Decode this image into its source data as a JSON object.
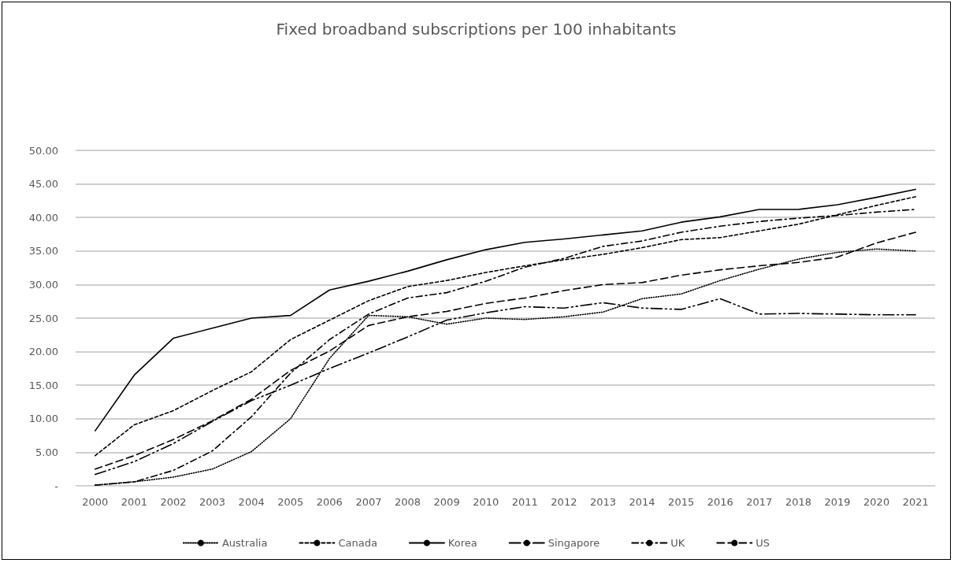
{
  "chart_data": {
    "type": "line",
    "title": "Fixed broadband subscriptions per 100 inhabitants",
    "categories": [
      "2000",
      "2001",
      "2002",
      "2003",
      "2004",
      "2005",
      "2006",
      "2007",
      "2008",
      "2009",
      "2010",
      "2011",
      "2012",
      "2013",
      "2014",
      "2015",
      "2016",
      "2017",
      "2018",
      "2019",
      "2020",
      "2021"
    ],
    "series": [
      {
        "name": "Australia",
        "color": "#000000",
        "line_style": "dotted",
        "values": [
          0.1,
          0.6,
          1.3,
          2.5,
          5.1,
          10,
          19,
          25.4,
          25.2,
          24.1,
          25,
          24.8,
          25.2,
          25.9,
          27.9,
          28.6,
          30.6,
          32.3,
          33.8,
          34.8,
          35.3,
          35
        ]
      },
      {
        "name": "Canada",
        "color": "#000000",
        "line_style": "dashed",
        "values": [
          4.5,
          9.1,
          11.2,
          14.2,
          17,
          21.8,
          24.7,
          27.6,
          29.7,
          30.6,
          31.8,
          32.8,
          33.7,
          34.5,
          35.5,
          36.7,
          37,
          38,
          39,
          40.4,
          41.8,
          43.1
        ]
      },
      {
        "name": "Korea",
        "color": "#000000",
        "line_style": "solid",
        "values": [
          8.2,
          16.5,
          22,
          23.5,
          25,
          25.4,
          29.2,
          30.5,
          32,
          33.7,
          35.2,
          36.3,
          36.8,
          37.4,
          38,
          39.3,
          40.1,
          41.2,
          41.2,
          41.9,
          43,
          44.2
        ]
      },
      {
        "name": "Singapore",
        "color": "#000000",
        "line_style": "dashdotdot",
        "values": [
          1.7,
          3.6,
          6.3,
          9.6,
          12.7,
          15,
          17.5,
          19.8,
          22.2,
          24.7,
          25.8,
          26.7,
          26.5,
          27.3,
          26.5,
          26.3,
          27.9,
          25.6,
          25.7,
          25.6,
          25.5,
          25.5
        ]
      },
      {
        "name": "UK",
        "color": "#000000",
        "line_style": "dashdot",
        "values": [
          0.1,
          0.6,
          2.3,
          5.2,
          10.3,
          16.8,
          21.8,
          25.6,
          28,
          28.8,
          30.5,
          32.6,
          33.9,
          35.7,
          36.5,
          37.8,
          38.7,
          39.4,
          39.9,
          40.3,
          40.8,
          41.2
        ]
      },
      {
        "name": "US",
        "color": "#000000",
        "line_style": "longdash",
        "values": [
          2.5,
          4.5,
          6.9,
          9.7,
          12.9,
          17.2,
          20.1,
          23.9,
          25.2,
          26,
          27.2,
          28,
          29.1,
          30,
          30.3,
          31.4,
          32.2,
          32.8,
          33.3,
          34.1,
          36.2,
          37.8
        ]
      }
    ],
    "ylim": [
      0,
      50
    ],
    "yticks": [
      {
        "value": 0,
        "label": "-"
      },
      {
        "value": 5,
        "label": "5.00"
      },
      {
        "value": 10,
        "label": "10.00"
      },
      {
        "value": 15,
        "label": "15.00"
      },
      {
        "value": 20,
        "label": "20.00"
      },
      {
        "value": 25,
        "label": "25.00"
      },
      {
        "value": 30,
        "label": "30.00"
      },
      {
        "value": 35,
        "label": "35.00"
      },
      {
        "value": 40,
        "label": "40.00"
      },
      {
        "value": 45,
        "label": "45.00"
      },
      {
        "value": 50,
        "label": "50.00"
      }
    ],
    "grid": "y",
    "legend": "bottom",
    "marker": "none"
  }
}
